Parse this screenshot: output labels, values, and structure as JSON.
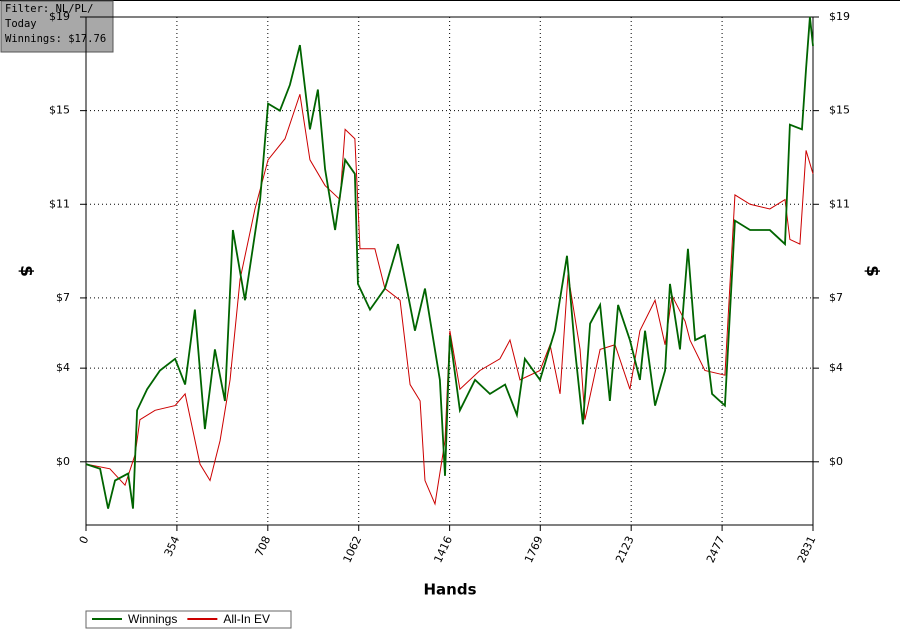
{
  "chart_data": {
    "type": "line",
    "filter_lines": [
      "Filter: NL/PL/",
      "Today",
      "Winnings: $17.76"
    ],
    "x_label": "Hands",
    "y_label": "$",
    "y2_label": "$",
    "xlim": [
      0,
      2831
    ],
    "xticks": [
      0,
      354,
      708,
      1062,
      1416,
      1769,
      2123,
      2477,
      2831
    ],
    "ylim": [
      -2.7,
      19
    ],
    "yticks": [
      {
        "value": 0,
        "label": "$0"
      },
      {
        "value": 4,
        "label": "$4"
      },
      {
        "value": 7,
        "label": "$7"
      },
      {
        "value": 11,
        "label": "$11"
      },
      {
        "value": 15,
        "label": "$15"
      },
      {
        "value": 19,
        "label": "$19"
      }
    ],
    "grid": true,
    "legend": "bottom-left",
    "series": [
      {
        "name": "Winnings",
        "color": "#006400",
        "x": [
          0,
          55,
          86,
          113,
          164,
          183,
          199,
          238,
          288,
          347,
          386,
          424,
          463,
          502,
          541,
          572,
          619,
          678,
          709,
          755,
          794,
          833,
          872,
          903,
          931,
          970,
          1009,
          1047,
          1059,
          1106,
          1164,
          1215,
          1242,
          1281,
          1320,
          1378,
          1398,
          1417,
          1456,
          1515,
          1573,
          1632,
          1678,
          1709,
          1768,
          1826,
          1873,
          1904,
          1935,
          1963,
          2002,
          2040,
          2072,
          2118,
          2157,
          2177,
          2216,
          2255,
          2274,
          2313,
          2344,
          2372,
          2410,
          2438,
          2488,
          2527,
          2586,
          2663,
          2722,
          2741,
          2788,
          2804,
          2819,
          2831
        ],
        "values": [
          -0.1,
          -0.3,
          -2,
          -0.8,
          -0.5,
          -2,
          2.2,
          3.1,
          3.9,
          4.4,
          3.3,
          6.5,
          1.4,
          4.8,
          2.6,
          9.9,
          6.9,
          11.2,
          15.3,
          15,
          16.1,
          17.8,
          14.2,
          15.9,
          12.5,
          9.9,
          12.9,
          12.3,
          7.6,
          6.5,
          7.4,
          9.3,
          7.8,
          5.6,
          7.4,
          3.5,
          -0.6,
          5.4,
          2.2,
          3.5,
          2.9,
          3.3,
          2,
          4.4,
          3.5,
          5.6,
          8.8,
          4.8,
          1.6,
          5.9,
          6.7,
          2.6,
          6.7,
          5.2,
          3.5,
          5.6,
          2.4,
          3.9,
          7.6,
          4.8,
          9.1,
          5.2,
          5.4,
          2.9,
          2.4,
          10.3,
          9.9,
          9.9,
          9.3,
          14.4,
          14.2,
          16.8,
          19,
          17.76
        ]
      },
      {
        "name": "All-In EV",
        "color": "#cc0000",
        "x": [
          0,
          93,
          152,
          191,
          210,
          269,
          347,
          386,
          444,
          483,
          522,
          561,
          600,
          658,
          709,
          775,
          833,
          872,
          931,
          989,
          1009,
          1047,
          1067,
          1125,
          1164,
          1223,
          1262,
          1301,
          1320,
          1359,
          1398,
          1417,
          1456,
          1534,
          1612,
          1651,
          1690,
          1768,
          1807,
          1846,
          1877,
          1924,
          1943,
          2002,
          2060,
          2118,
          2157,
          2216,
          2255,
          2282,
          2333,
          2352,
          2410,
          2488,
          2527,
          2586,
          2663,
          2722,
          2741,
          2780,
          2804,
          2831
        ],
        "values": [
          -0.1,
          -0.3,
          -1,
          0.3,
          1.8,
          2.2,
          2.4,
          2.9,
          -0.1,
          -0.8,
          0.9,
          3.5,
          7.8,
          10.8,
          12.9,
          13.8,
          15.7,
          12.9,
          11.8,
          11.2,
          14.2,
          13.8,
          9.1,
          9.1,
          7.4,
          6.9,
          3.3,
          2.6,
          -0.8,
          -1.8,
          0.9,
          5.6,
          3.1,
          3.9,
          4.4,
          5.2,
          3.5,
          3.9,
          5,
          2.9,
          8,
          4.8,
          1.8,
          4.8,
          5,
          3.1,
          5.6,
          6.9,
          5,
          7.1,
          6,
          5.2,
          3.9,
          3.7,
          11.4,
          11,
          10.8,
          11.2,
          9.5,
          9.3,
          13.3,
          12.3
        ]
      }
    ]
  }
}
